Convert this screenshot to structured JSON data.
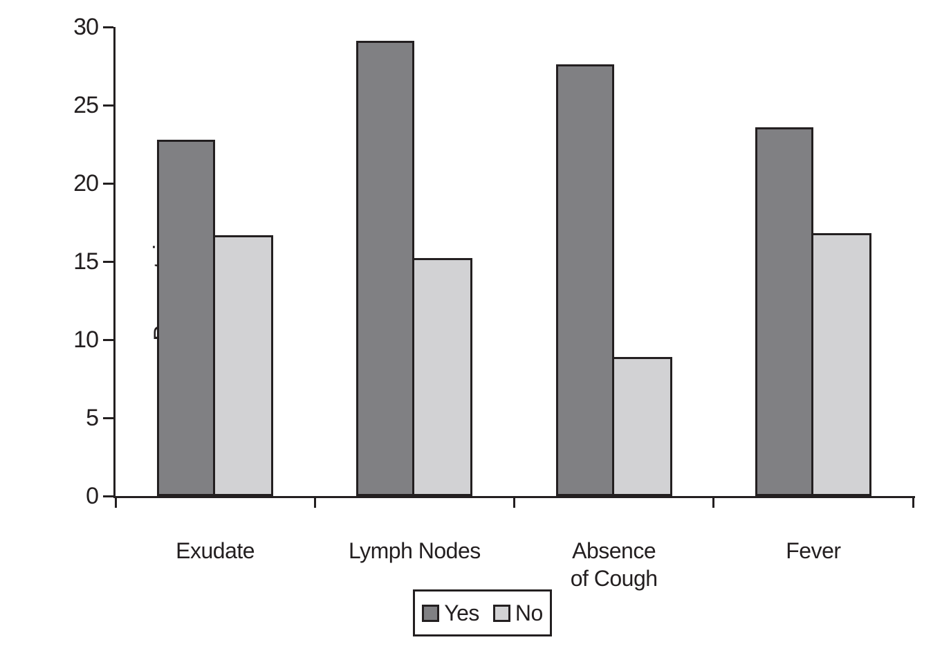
{
  "chart_data": {
    "type": "bar",
    "title": "",
    "ylabel": "Percentaje",
    "xlabel": "",
    "ylim": [
      0,
      30
    ],
    "y_ticks": [
      0,
      5,
      10,
      15,
      20,
      25,
      30
    ],
    "grid": false,
    "legend_position": "bottom-center",
    "categories": [
      "Exudate",
      "Lymph Nodes",
      "Absence\nof Cough",
      "Fever"
    ],
    "series": [
      {
        "name": "Yes",
        "color": "#808083",
        "values": [
          22.8,
          29.1,
          27.6,
          23.6
        ]
      },
      {
        "name": "No",
        "color": "#d2d2d4",
        "values": [
          16.7,
          15.2,
          8.9,
          16.8
        ]
      }
    ],
    "colors": {
      "axis": "#231f20",
      "bar_border": "#231f20",
      "background": "#ffffff"
    }
  }
}
